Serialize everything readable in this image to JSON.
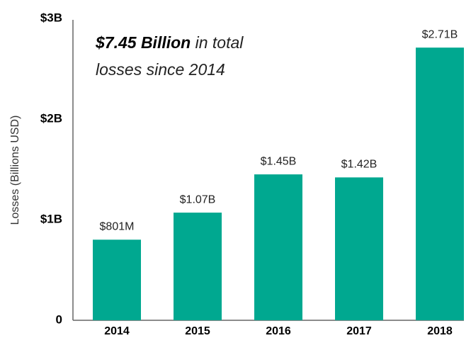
{
  "chart_data": {
    "type": "bar",
    "y_axis_label": "Losses (Billions USD)",
    "annotation": {
      "emphasis": "$7.45 Billion",
      "line1_rest": "in total",
      "line2": "losses since 2014"
    },
    "categories": [
      "2014",
      "2015",
      "2016",
      "2017",
      "2018"
    ],
    "values": [
      0.801,
      1.07,
      1.45,
      1.42,
      2.71
    ],
    "value_labels": [
      "$801M",
      "$1.07B",
      "$1.45B",
      "$1.42B",
      "$2.71B"
    ],
    "color": "#00a890",
    "ylim": [
      0,
      3
    ],
    "yticks": [
      0,
      {
        "value": 1,
        "label": "$1B"
      },
      {
        "value": 2,
        "label": "$2B"
      },
      {
        "value": 3,
        "label": "$3B"
      }
    ],
    "grid": false
  }
}
